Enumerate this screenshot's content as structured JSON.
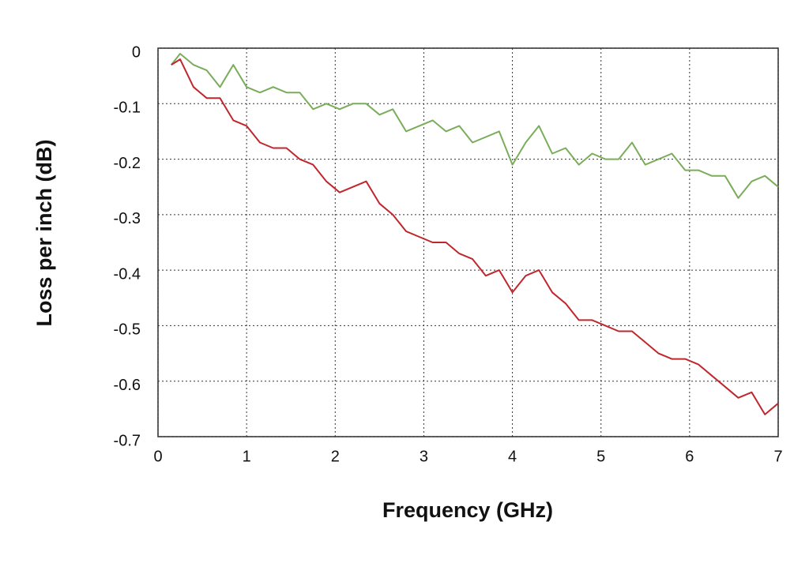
{
  "chart_data": {
    "type": "line",
    "xlabel": "Frequency (GHz)",
    "ylabel": "Loss per inch (dB)",
    "x": [
      0.15,
      0.25,
      0.4,
      0.55,
      0.7,
      0.85,
      1.0,
      1.15,
      1.3,
      1.45,
      1.6,
      1.75,
      1.9,
      2.05,
      2.2,
      2.35,
      2.5,
      2.65,
      2.8,
      2.95,
      3.1,
      3.25,
      3.4,
      3.55,
      3.7,
      3.85,
      4.0,
      4.15,
      4.3,
      4.45,
      4.6,
      4.75,
      4.9,
      5.05,
      5.2,
      5.35,
      5.5,
      5.65,
      5.8,
      5.95,
      6.1,
      6.25,
      6.4,
      6.55,
      6.7,
      6.85,
      7.0
    ],
    "series": [
      {
        "color": "#7aad5a",
        "values": [
          -0.03,
          -0.01,
          -0.03,
          -0.04,
          -0.07,
          -0.03,
          -0.07,
          -0.08,
          -0.07,
          -0.08,
          -0.08,
          -0.11,
          -0.1,
          -0.11,
          -0.1,
          -0.1,
          -0.12,
          -0.11,
          -0.15,
          -0.14,
          -0.13,
          -0.15,
          -0.14,
          -0.17,
          -0.16,
          -0.15,
          -0.21,
          -0.17,
          -0.14,
          -0.19,
          -0.18,
          -0.21,
          -0.19,
          -0.2,
          -0.2,
          -0.17,
          -0.21,
          -0.2,
          -0.19,
          -0.22,
          -0.22,
          -0.23,
          -0.23,
          -0.27,
          -0.24,
          -0.23,
          -0.25
        ]
      },
      {
        "color": "#c0272d",
        "values": [
          -0.03,
          -0.02,
          -0.07,
          -0.09,
          -0.09,
          -0.13,
          -0.14,
          -0.17,
          -0.18,
          -0.18,
          -0.2,
          -0.21,
          -0.24,
          -0.26,
          -0.25,
          -0.24,
          -0.28,
          -0.3,
          -0.33,
          -0.34,
          -0.35,
          -0.35,
          -0.37,
          -0.38,
          -0.41,
          -0.4,
          -0.44,
          -0.41,
          -0.4,
          -0.44,
          -0.46,
          -0.49,
          -0.49,
          -0.5,
          -0.51,
          -0.51,
          -0.53,
          -0.55,
          -0.56,
          -0.56,
          -0.57,
          -0.59,
          -0.61,
          -0.63,
          -0.62,
          -0.66,
          -0.64
        ]
      }
    ],
    "xlim": [
      0,
      7
    ],
    "xticks": [
      0,
      1,
      2,
      3,
      4,
      5,
      6,
      7
    ],
    "ylim": [
      -0.7,
      0
    ],
    "yticks": [
      0,
      -0.1,
      -0.2,
      -0.3,
      -0.4,
      -0.5,
      -0.6,
      -0.7
    ],
    "grid": true
  }
}
